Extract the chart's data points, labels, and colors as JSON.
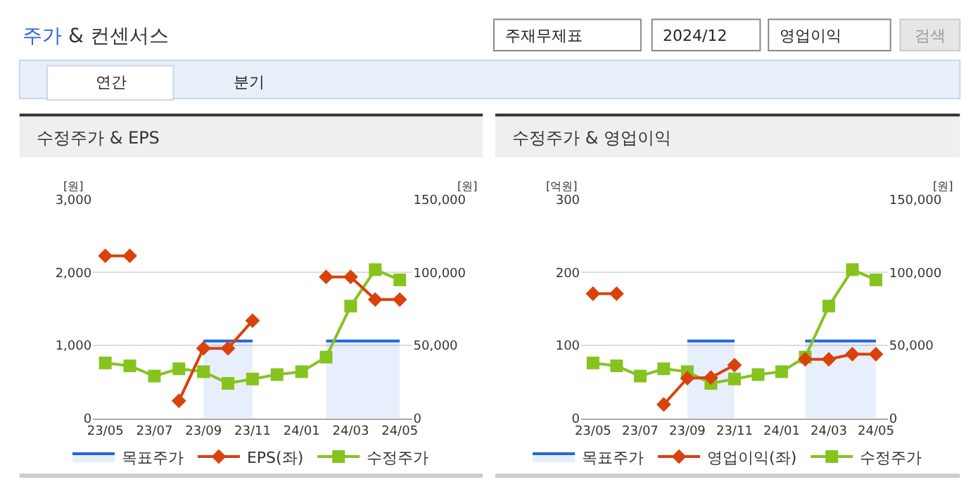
{
  "chart_data": [
    {
      "type": "other",
      "title": "주가 & 컨센서스",
      "annotations": [
        "주재무제표",
        "2024/12",
        "영업이익",
        "검색",
        "연간",
        "분기"
      ]
    },
    {
      "type": "line",
      "title": "수정주가 & EPS",
      "categories": [
        "23/05",
        null,
        "23/07",
        null,
        "23/09",
        null,
        "23/11",
        null,
        "24/01",
        null,
        "24/03",
        null,
        "24/05"
      ],
      "series": [
        {
          "name": "목표주가",
          "type": "area",
          "axis": "y2",
          "color": "#2266dd",
          "values": [
            null,
            null,
            null,
            null,
            53000,
            53000,
            53000,
            null,
            null,
            53000,
            53000,
            53000,
            53000
          ]
        },
        {
          "name": "EPS(좌)",
          "type": "line",
          "color": "#d9420b",
          "marker": "diamond",
          "values": [
            2230,
            2230,
            null,
            240,
            960,
            960,
            1340,
            null,
            null,
            1940,
            1940,
            1630,
            1630
          ]
        },
        {
          "name": "수정주가",
          "type": "line",
          "axis": "y2",
          "color": "#86c31f",
          "marker": "square",
          "values": [
            38000,
            36000,
            29000,
            34000,
            32000,
            24000,
            27000,
            30000,
            32000,
            42000,
            77000,
            102000,
            95000
          ]
        }
      ],
      "ylabel": "[원]",
      "y2label": "[원]",
      "ylim": [
        0,
        3000
      ],
      "yticks": [
        0,
        {
          "value": 1000,
          "label": "1,000"
        },
        {
          "value": 2000,
          "label": "2,000"
        },
        {
          "value": 3000,
          "label": "3,000"
        }
      ],
      "y2lim": [
        0,
        150000
      ],
      "y2ticks": [
        0,
        {
          "value": 50000,
          "label": "50,000"
        },
        {
          "value": 100000,
          "label": "100,000"
        },
        {
          "value": 150000,
          "label": "150,000"
        }
      ],
      "grid": "y",
      "legend": "bottom"
    },
    {
      "type": "line",
      "title": "수정주가 & 영업이익",
      "categories": [
        "23/05",
        null,
        "23/07",
        null,
        "23/09",
        null,
        "23/11",
        null,
        "24/01",
        null,
        "24/03",
        null,
        "24/05"
      ],
      "series": [
        {
          "name": "목표주가",
          "type": "area",
          "axis": "y2",
          "color": "#2266dd",
          "values": [
            null,
            null,
            null,
            null,
            53000,
            53000,
            53000,
            null,
            null,
            53000,
            53000,
            53000,
            53000
          ]
        },
        {
          "name": "영업이익(좌)",
          "type": "line",
          "color": "#d9420b",
          "marker": "diamond",
          "values": [
            171,
            171,
            null,
            19,
            55,
            56,
            73,
            null,
            null,
            81,
            81,
            88,
            88
          ]
        },
        {
          "name": "수정주가",
          "type": "line",
          "axis": "y2",
          "color": "#86c31f",
          "marker": "square",
          "values": [
            38000,
            36000,
            29000,
            34000,
            32000,
            24000,
            27000,
            30000,
            32000,
            42000,
            77000,
            102000,
            95000
          ]
        }
      ],
      "ylabel": "[억원]",
      "y2label": "[원]",
      "ylim": [
        0,
        300
      ],
      "yticks": [
        0,
        100,
        200,
        300
      ],
      "y2lim": [
        0,
        150000
      ],
      "y2ticks": [
        0,
        {
          "value": 50000,
          "label": "50,000"
        },
        {
          "value": 100000,
          "label": "100,000"
        },
        {
          "value": 150000,
          "label": "150,000"
        }
      ],
      "grid": "y",
      "legend": "bottom"
    }
  ]
}
